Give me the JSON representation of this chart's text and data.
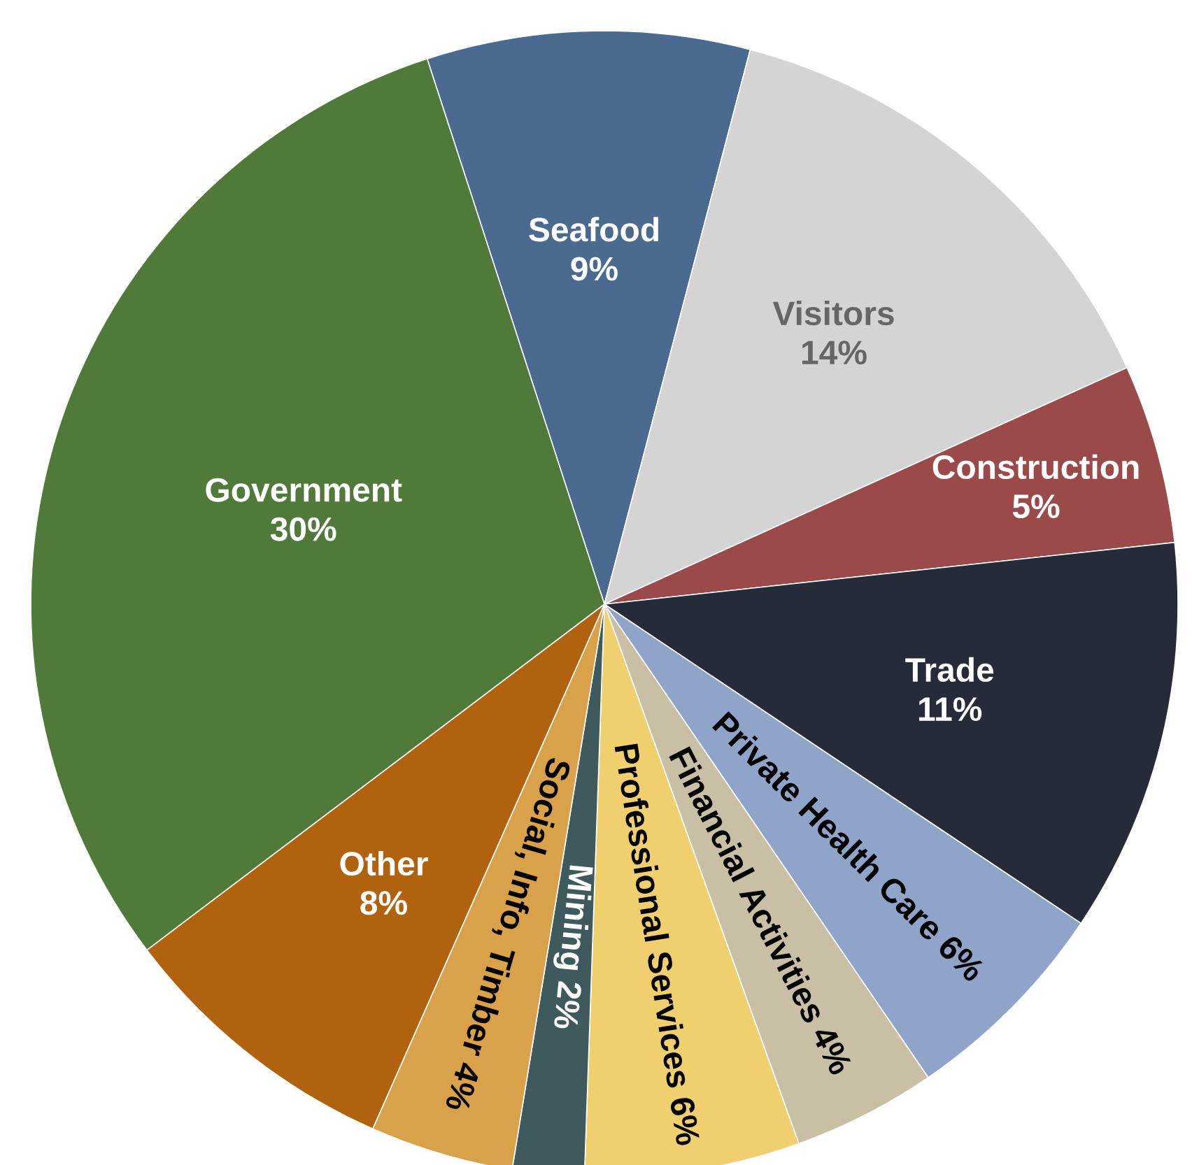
{
  "chart_data": {
    "type": "pie",
    "categories": [
      "Seafood",
      "Visitors",
      "Construction",
      "Trade",
      "Private Health Care",
      "Financial Activities",
      "Professional Services",
      "Mining",
      "Social, Info, Timber",
      "Other",
      "Government"
    ],
    "values": [
      9,
      14,
      5,
      11,
      6,
      4,
      6,
      2,
      4,
      8,
      30
    ],
    "colors": [
      "#4a6a8f",
      "#d4d4d4",
      "#9b4a4a",
      "#262b3a",
      "#8fa4c8",
      "#c9bfa5",
      "#f0cf6e",
      "#3e5a5c",
      "#d9a24a",
      "#b0620f",
      "#4f7a3a"
    ],
    "value_labels": [
      "9%",
      "14%",
      "5%",
      "11%",
      "6%",
      "4%",
      "6%",
      "2%",
      "4%",
      "8%",
      "30%"
    ]
  }
}
